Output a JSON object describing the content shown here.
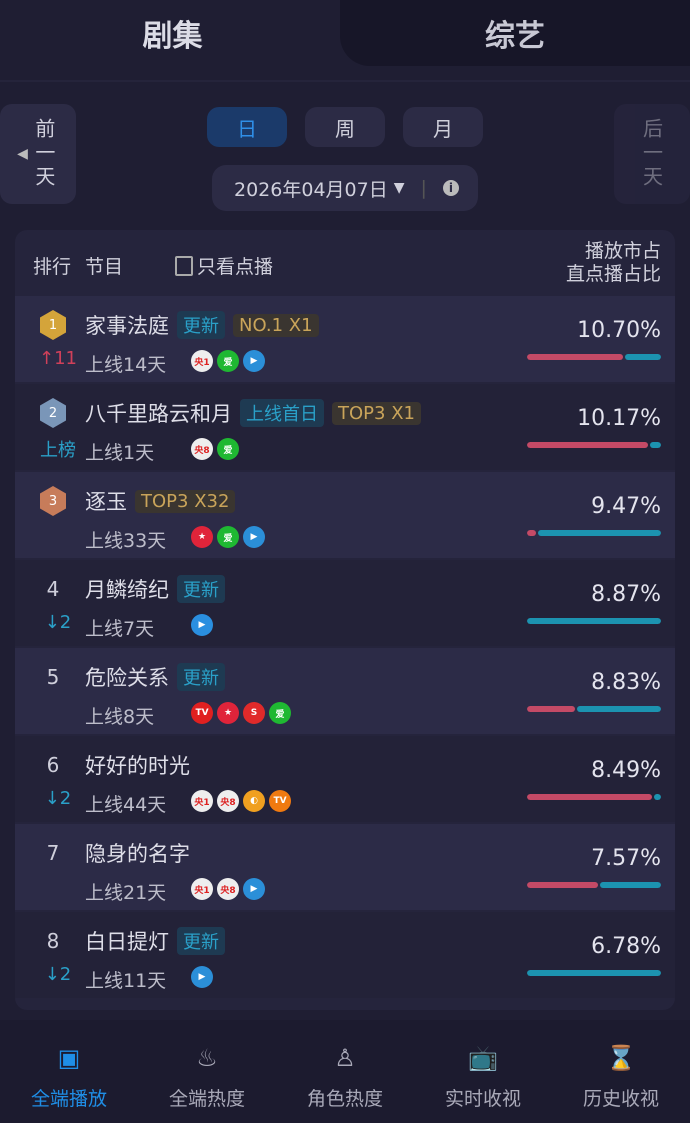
{
  "top_tabs": [
    {
      "label": "剧集",
      "active": true
    },
    {
      "label": "综艺",
      "active": false
    }
  ],
  "prev_day": "前一天",
  "next_day": "后一天",
  "periods": [
    {
      "label": "日",
      "active": true
    },
    {
      "label": "周"
    },
    {
      "label": "月"
    }
  ],
  "date": "2026年04月07日",
  "header": {
    "rank": "排行",
    "program": "节目",
    "filter_label": "只看点播",
    "col1": "播放市占",
    "col2": "直点播占比"
  },
  "colors": {
    "accent": "#1f8ee6",
    "bar_pink": "#c44a66",
    "bar_teal": "#1c93b0",
    "rise": "#d0405a",
    "fall": "#2aa0c8"
  },
  "rows": [
    {
      "rank": "1",
      "medal": "gold",
      "change": "↑11",
      "change_dir": "up",
      "title": "家事法庭",
      "tags": [
        {
          "text": "更新",
          "type": "new"
        },
        {
          "text": "NO.1 X1",
          "type": "gold"
        }
      ],
      "days": "上线14天",
      "platforms": [
        "央1",
        "iQIYI",
        "腾讯视频"
      ],
      "share": "10.70%",
      "split": 0.72
    },
    {
      "rank": "2",
      "medal": "silver",
      "change": "上榜",
      "change_dir": "new",
      "title": "八千里路云和月",
      "tags": [
        {
          "text": "上线首日",
          "type": "new"
        },
        {
          "text": "TOP3 X1",
          "type": "gold"
        }
      ],
      "days": "上线1天",
      "platforms": [
        "央8",
        "iQIYI"
      ],
      "share": "10.17%",
      "split": 0.9
    },
    {
      "rank": "3",
      "medal": "bronze",
      "change": "",
      "change_dir": "",
      "title": "逐玉",
      "tags": [
        {
          "text": "TOP3 X32",
          "type": "gold"
        }
      ],
      "days": "上线33天",
      "platforms": [
        "东方",
        "iQIYI",
        "腾讯视频"
      ],
      "share": "9.47%",
      "split": 0.07
    },
    {
      "rank": "4",
      "change": "↓2",
      "change_dir": "down",
      "title": "月鳞绮纪",
      "tags": [
        {
          "text": "更新",
          "type": "new"
        }
      ],
      "days": "上线7天",
      "platforms": [
        "优酷"
      ],
      "share": "8.87%",
      "split": 0
    },
    {
      "rank": "5",
      "change": "",
      "change_dir": "",
      "title": "危险关系",
      "tags": [
        {
          "text": "更新",
          "type": "new"
        }
      ],
      "days": "上线8天",
      "platforms": [
        "CCTV",
        "东方",
        "江苏",
        "iQIYI"
      ],
      "share": "8.83%",
      "split": 0.36
    },
    {
      "rank": "6",
      "change": "↓2",
      "change_dir": "down",
      "title": "好好的时光",
      "tags": [],
      "days": "上线44天",
      "platforms": [
        "央1",
        "央8",
        "浙江",
        "芒果TV"
      ],
      "share": "8.49%",
      "split": 0.93
    },
    {
      "rank": "7",
      "change": "",
      "change_dir": "",
      "title": "隐身的名字",
      "tags": [],
      "days": "上线21天",
      "platforms": [
        "央1",
        "央8",
        "腾讯视频"
      ],
      "share": "7.57%",
      "split": 0.53
    },
    {
      "rank": "8",
      "change": "↓2",
      "change_dir": "down",
      "title": "白日提灯",
      "tags": [
        {
          "text": "更新",
          "type": "new"
        }
      ],
      "days": "上线11天",
      "platforms": [
        "腾讯视频"
      ],
      "share": "6.78%",
      "split": 0
    }
  ],
  "nav": [
    {
      "label": "全端播放",
      "icon": "play-board-icon",
      "active": true
    },
    {
      "label": "全端热度",
      "icon": "flame-icon"
    },
    {
      "label": "角色热度",
      "icon": "person-icon"
    },
    {
      "label": "实时收视",
      "icon": "tv-icon"
    },
    {
      "label": "历史收视",
      "icon": "hourglass-tv-icon"
    }
  ]
}
